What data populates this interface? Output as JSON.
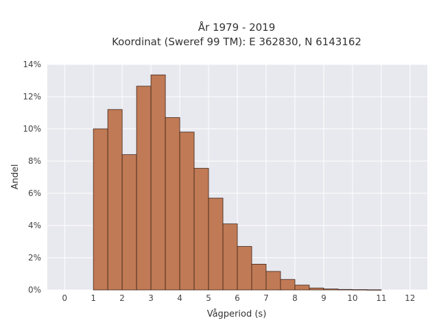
{
  "chart_data": {
    "type": "bar",
    "title": "År 1979 - 2019",
    "subtitle": "Koordinat (Sweref 99 TM): E 362830, N 6143162",
    "xlabel": "Vågperiod (s)",
    "ylabel": "Andel",
    "xlim": [
      -0.6,
      12.6
    ],
    "ylim": [
      0,
      14
    ],
    "x_ticks": [
      0,
      1,
      2,
      3,
      4,
      5,
      6,
      7,
      8,
      9,
      10,
      11,
      12
    ],
    "y_ticks": [
      0,
      2,
      4,
      6,
      8,
      10,
      12,
      14
    ],
    "y_tick_labels": [
      "0%",
      "2%",
      "4%",
      "6%",
      "8%",
      "10%",
      "12%",
      "14%"
    ],
    "bin_width": 0.5,
    "bins": [
      {
        "start": 1.0,
        "value": 10.0
      },
      {
        "start": 1.5,
        "value": 11.2
      },
      {
        "start": 2.0,
        "value": 8.4
      },
      {
        "start": 2.5,
        "value": 12.65
      },
      {
        "start": 3.0,
        "value": 13.35
      },
      {
        "start": 3.5,
        "value": 10.7
      },
      {
        "start": 4.0,
        "value": 9.8
      },
      {
        "start": 4.5,
        "value": 7.55
      },
      {
        "start": 5.0,
        "value": 5.7
      },
      {
        "start": 5.5,
        "value": 4.1
      },
      {
        "start": 6.0,
        "value": 2.7
      },
      {
        "start": 6.5,
        "value": 1.6
      },
      {
        "start": 7.0,
        "value": 1.15
      },
      {
        "start": 7.5,
        "value": 0.65
      },
      {
        "start": 8.0,
        "value": 0.3
      },
      {
        "start": 8.5,
        "value": 0.12
      },
      {
        "start": 9.0,
        "value": 0.06
      },
      {
        "start": 9.5,
        "value": 0.03
      },
      {
        "start": 10.0,
        "value": 0.02
      },
      {
        "start": 10.5,
        "value": 0.01
      }
    ],
    "grid": true,
    "colors": {
      "bar_fill": "#c07a55",
      "bar_stroke": "#3d2418",
      "plot_background": "#e8e8ef",
      "grid": "#ffffff"
    }
  }
}
